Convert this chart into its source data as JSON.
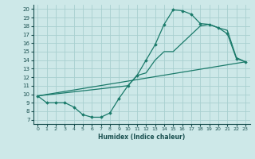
{
  "xlabel": "Humidex (Indice chaleur)",
  "xlim": [
    -0.5,
    23.5
  ],
  "ylim": [
    6.5,
    20.5
  ],
  "xticks": [
    0,
    1,
    2,
    3,
    4,
    5,
    6,
    7,
    8,
    9,
    10,
    11,
    12,
    13,
    14,
    15,
    16,
    17,
    18,
    19,
    20,
    21,
    22,
    23
  ],
  "yticks": [
    7,
    8,
    9,
    10,
    11,
    12,
    13,
    14,
    15,
    16,
    17,
    18,
    19,
    20
  ],
  "bg_color": "#cde8e8",
  "grid_color": "#a8d0d0",
  "line_color": "#1a7a6a",
  "line1_x": [
    0,
    1,
    2,
    3,
    4,
    5,
    6,
    7,
    8,
    9,
    10,
    11,
    12,
    13,
    14,
    15,
    16,
    17,
    18,
    19,
    20,
    21,
    22,
    23
  ],
  "line1_y": [
    9.8,
    9.0,
    9.0,
    9.0,
    8.5,
    7.6,
    7.3,
    7.3,
    7.8,
    9.5,
    11.0,
    12.2,
    14.0,
    15.8,
    18.2,
    19.9,
    19.8,
    19.4,
    18.3,
    18.2,
    17.8,
    17.1,
    14.2,
    13.8
  ],
  "line2_x": [
    0,
    23
  ],
  "line2_y": [
    9.8,
    13.8
  ],
  "line3_x": [
    0,
    10,
    11,
    12,
    13,
    14,
    15,
    16,
    17,
    18,
    19,
    20,
    21,
    22,
    23
  ],
  "line3_y": [
    9.8,
    11.0,
    12.2,
    12.5,
    14.0,
    15.0,
    15.0,
    16.0,
    17.0,
    18.0,
    18.2,
    17.8,
    17.5,
    14.3,
    13.8
  ]
}
